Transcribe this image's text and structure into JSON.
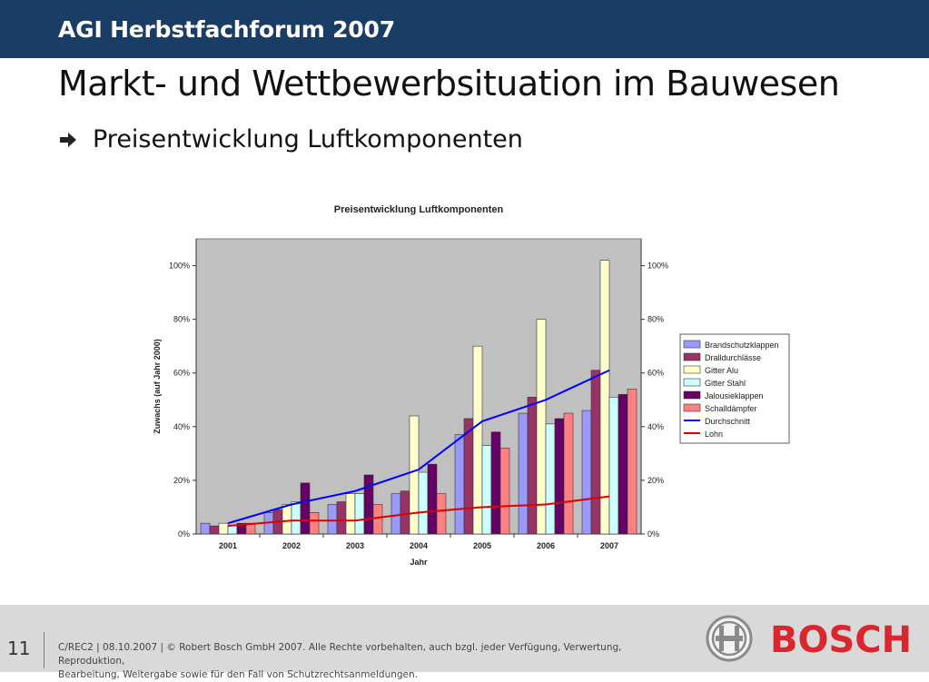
{
  "header": {
    "event": "AGI Herbstfachforum 2007"
  },
  "slide": {
    "title": "Markt- und Wettbewerbsituation im Bauwesen",
    "bullet": "Preisentwicklung Luftkomponenten"
  },
  "footer": {
    "page_number": "11",
    "copyright_line1": "C/REC2 | 08.10.2007 | © Robert Bosch GmbH 2007. Alle Rechte vorbehalten, auch bzgl. jeder Verfügung, Verwertung, Reproduktion,",
    "copyright_line2": "Bearbeitung, Weitergabe sowie für den Fall von Schutzrechtsanmeldungen.",
    "brand": "BOSCH"
  },
  "colors": {
    "header_bg": "#1a3d66",
    "plot_bg": "#c0c0c0",
    "brand_red": "#d9262f"
  },
  "chart_data": {
    "type": "bar",
    "title": "Preisentwicklung Luftkomponenten",
    "xlabel": "Jahr",
    "ylabel": "Zuwachs (auf Jahr 2000)",
    "categories": [
      "2001",
      "2002",
      "2003",
      "2004",
      "2005",
      "2006",
      "2007"
    ],
    "ylim": [
      0,
      110
    ],
    "y_ticks": [
      "0%",
      "20%",
      "40%",
      "60%",
      "80%",
      "100%"
    ],
    "y_tick_values": [
      0,
      20,
      40,
      60,
      80,
      100
    ],
    "grid": false,
    "legend_position": "right",
    "series": [
      {
        "name": "Brandschutzklappen",
        "color": "#9999ff",
        "values": [
          4,
          8,
          11,
          15,
          37,
          45,
          46
        ]
      },
      {
        "name": "Dralldurchlässe",
        "color": "#993366",
        "values": [
          3,
          9,
          12,
          16,
          43,
          51,
          61
        ]
      },
      {
        "name": "Gitter Alu",
        "color": "#ffffcc",
        "values": [
          4,
          11,
          15,
          44,
          70,
          80,
          102
        ]
      },
      {
        "name": "Gitter Stahl",
        "color": "#ccffff",
        "values": [
          3,
          12,
          15,
          23,
          33,
          41,
          51
        ]
      },
      {
        "name": "Jalousieklappen",
        "color": "#660066",
        "values": [
          4,
          19,
          22,
          26,
          38,
          43,
          52
        ]
      },
      {
        "name": "Schalldämpfer",
        "color": "#ff8080",
        "values": [
          4,
          8,
          11,
          15,
          32,
          45,
          54
        ]
      }
    ],
    "lines": [
      {
        "name": "Durchschnitt",
        "color": "#0000ff",
        "values": [
          4,
          11,
          16,
          24,
          42,
          50,
          61
        ]
      },
      {
        "name": "Lohn",
        "color": "#dd0000",
        "values": [
          3,
          5,
          5,
          8,
          10,
          11,
          14
        ]
      }
    ]
  }
}
